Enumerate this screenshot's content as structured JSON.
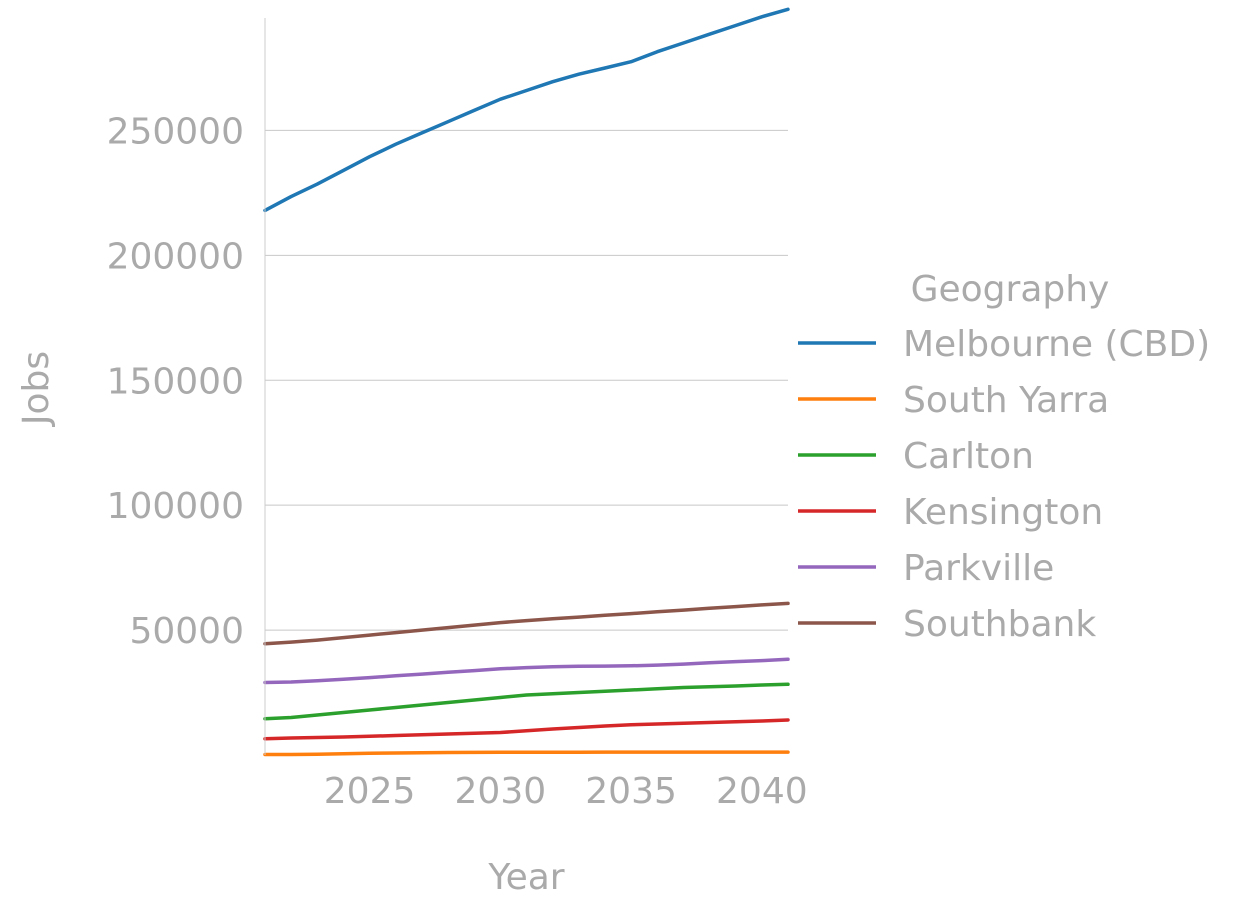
{
  "chart_data": {
    "type": "line",
    "xlabel": "Year",
    "ylabel": "Jobs",
    "xlim": [
      2021,
      2041
    ],
    "ylim": [
      0,
      295000
    ],
    "xticks": [
      2025,
      2030,
      2035,
      2040
    ],
    "yticks": [
      50000,
      100000,
      150000,
      200000,
      250000
    ],
    "grid": "horizontal",
    "legend": {
      "title": "Geography",
      "position": "right"
    },
    "x": [
      2021,
      2022,
      2023,
      2024,
      2025,
      2026,
      2027,
      2028,
      2029,
      2030,
      2031,
      2032,
      2033,
      2034,
      2035,
      2036,
      2037,
      2038,
      2039,
      2040,
      2041
    ],
    "series": [
      {
        "name": "Melbourne (CBD)",
        "color": "#1f77b4",
        "values": [
          218000,
          223500,
          228500,
          234000,
          239500,
          244500,
          249000,
          253500,
          258000,
          262500,
          266000,
          269500,
          272500,
          275000,
          277500,
          281500,
          285000,
          288500,
          292000,
          295500,
          298500
        ]
      },
      {
        "name": "South Yarra",
        "color": "#ff7f0e",
        "values": [
          200,
          200,
          300,
          500,
          700,
          800,
          900,
          1000,
          1050,
          1100,
          1100,
          1100,
          1100,
          1150,
          1150,
          1150,
          1150,
          1150,
          1150,
          1150,
          1150
        ]
      },
      {
        "name": "Carlton",
        "color": "#2ca02c",
        "values": [
          14500,
          15000,
          16000,
          17000,
          18000,
          19000,
          20000,
          21000,
          22000,
          23000,
          24000,
          24500,
          25000,
          25500,
          26000,
          26500,
          27000,
          27300,
          27600,
          28000,
          28300
        ]
      },
      {
        "name": "Kensington",
        "color": "#d62728",
        "values": [
          6500,
          6800,
          7000,
          7200,
          7500,
          7800,
          8100,
          8400,
          8700,
          9000,
          9700,
          10400,
          11000,
          11600,
          12100,
          12400,
          12700,
          13000,
          13300,
          13600,
          14000
        ]
      },
      {
        "name": "Parkville",
        "color": "#9467bd",
        "values": [
          29000,
          29200,
          29700,
          30300,
          31000,
          31700,
          32400,
          33100,
          33800,
          34500,
          35000,
          35300,
          35500,
          35600,
          35700,
          36000,
          36400,
          36900,
          37400,
          37800,
          38300
        ]
      },
      {
        "name": "Southbank",
        "color": "#8c564b",
        "values": [
          44500,
          45200,
          46000,
          47000,
          48000,
          49000,
          50000,
          51000,
          52000,
          53000,
          53800,
          54500,
          55200,
          55900,
          56600,
          57300,
          58000,
          58700,
          59400,
          60100,
          60700
        ]
      }
    ]
  }
}
